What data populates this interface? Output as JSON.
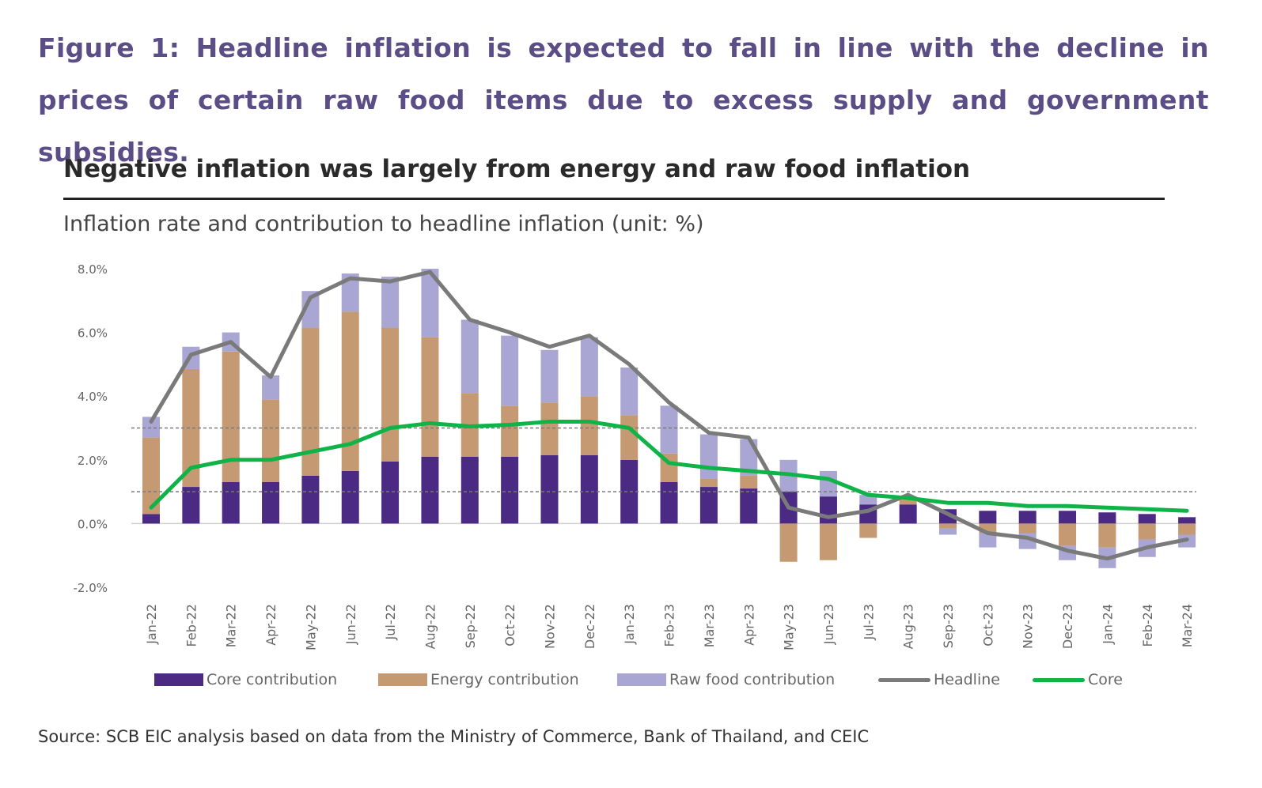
{
  "figure_title": "Figure 1: Headline inflation is expected to fall in line with the decline in prices of certain raw food items due to excess supply and government subsidies.",
  "source": "Source: SCB EIC analysis based on data from the Ministry of Commerce, Bank of Thailand, and CEIC",
  "colors": {
    "core_contribution": "#4a2a83",
    "energy_contribution": "#c59a73",
    "raw_food_contribution": "#aaa6d3",
    "headline": "#7a7a7a",
    "core": "#10b347",
    "reference_line": "#7a7a7a"
  },
  "chart_data": {
    "type": "bar",
    "title": "Negative inflation was largely from energy and raw food inflation",
    "subtitle": "Inflation rate and contribution to headline inflation (unit: %)",
    "ylim": [
      -2.0,
      8.0
    ],
    "yticks": [
      "8.0%",
      "6.0%",
      "4.0%",
      "2.0%",
      "0.0%",
      "-2.0%"
    ],
    "ytick_values": [
      8,
      6,
      4,
      2,
      0,
      -2
    ],
    "reference_lines": [
      3.0,
      1.0
    ],
    "categories": [
      "Jan-22",
      "Feb-22",
      "Mar-22",
      "Apr-22",
      "May-22",
      "Jun-22",
      "Jul-22",
      "Aug-22",
      "Sep-22",
      "Oct-22",
      "Nov-22",
      "Dec-22",
      "Jan-23",
      "Feb-23",
      "Mar-23",
      "Apr-23",
      "May-23",
      "Jun-23",
      "Jul-23",
      "Aug-23",
      "Sep-23",
      "Oct-23",
      "Nov-23",
      "Dec-23",
      "Jan-24",
      "Feb-24",
      "Mar-24"
    ],
    "series": [
      {
        "name": "Core contribution",
        "kind": "bar",
        "values": [
          0.3,
          1.15,
          1.3,
          1.3,
          1.5,
          1.65,
          1.95,
          2.1,
          2.1,
          2.1,
          2.15,
          2.15,
          2.0,
          1.3,
          1.15,
          1.1,
          1.0,
          0.85,
          0.6,
          0.6,
          0.45,
          0.4,
          0.4,
          0.4,
          0.35,
          0.3,
          0.2
        ]
      },
      {
        "name": "Energy contribution",
        "kind": "bar",
        "values": [
          2.4,
          3.7,
          4.1,
          2.6,
          4.65,
          5.0,
          4.2,
          3.75,
          2.0,
          1.6,
          1.65,
          1.85,
          1.4,
          0.9,
          0.25,
          0.4,
          -1.2,
          -1.15,
          -0.45,
          0.15,
          -0.15,
          -0.3,
          -0.3,
          -0.7,
          -0.75,
          -0.5,
          -0.35
        ]
      },
      {
        "name": "Raw food contribution",
        "kind": "bar",
        "values": [
          0.65,
          0.7,
          0.6,
          0.75,
          1.15,
          1.2,
          1.6,
          2.15,
          2.3,
          2.2,
          1.65,
          1.85,
          1.5,
          1.5,
          1.4,
          1.15,
          1.0,
          0.8,
          0.3,
          0.1,
          -0.2,
          -0.45,
          -0.5,
          -0.45,
          -0.65,
          -0.55,
          -0.4
        ]
      },
      {
        "name": "Headline",
        "kind": "line",
        "values": [
          3.2,
          5.3,
          5.7,
          4.6,
          7.1,
          7.7,
          7.6,
          7.9,
          6.4,
          6.0,
          5.55,
          5.9,
          5.0,
          3.8,
          2.85,
          2.7,
          0.5,
          0.2,
          0.4,
          0.9,
          0.3,
          -0.3,
          -0.45,
          -0.85,
          -1.1,
          -0.75,
          -0.5
        ]
      },
      {
        "name": "Core",
        "kind": "line",
        "values": [
          0.5,
          1.75,
          2.0,
          2.0,
          2.25,
          2.5,
          3.0,
          3.15,
          3.05,
          3.1,
          3.2,
          3.2,
          3.0,
          1.9,
          1.75,
          1.65,
          1.55,
          1.4,
          0.9,
          0.8,
          0.65,
          0.65,
          0.55,
          0.55,
          0.5,
          0.45,
          0.4
        ]
      }
    ],
    "legend": [
      "Core contribution",
      "Energy contribution",
      "Raw food contribution",
      "Headline",
      "Core"
    ],
    "legend_position": "bottom"
  }
}
